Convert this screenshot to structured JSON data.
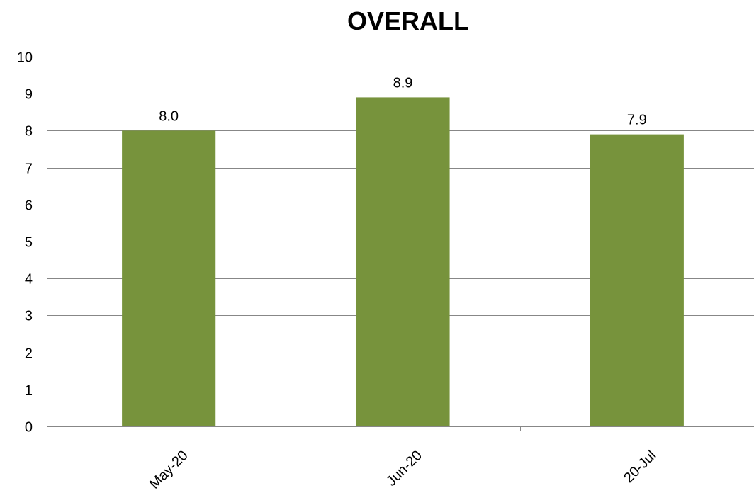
{
  "chart_data": {
    "type": "bar",
    "title": "OVERALL",
    "categories": [
      "May-20",
      "Jun-20",
      "20-Jul"
    ],
    "values": [
      8.0,
      8.9,
      7.9
    ],
    "value_labels": [
      "8.0",
      "8.9",
      "7.9"
    ],
    "xlabel": "",
    "ylabel": "",
    "ylim": [
      0,
      10
    ],
    "yticks": [
      0,
      1,
      2,
      3,
      4,
      5,
      6,
      7,
      8,
      9,
      10
    ],
    "grid": true,
    "legend": "none",
    "bar_color": "#77933c"
  }
}
